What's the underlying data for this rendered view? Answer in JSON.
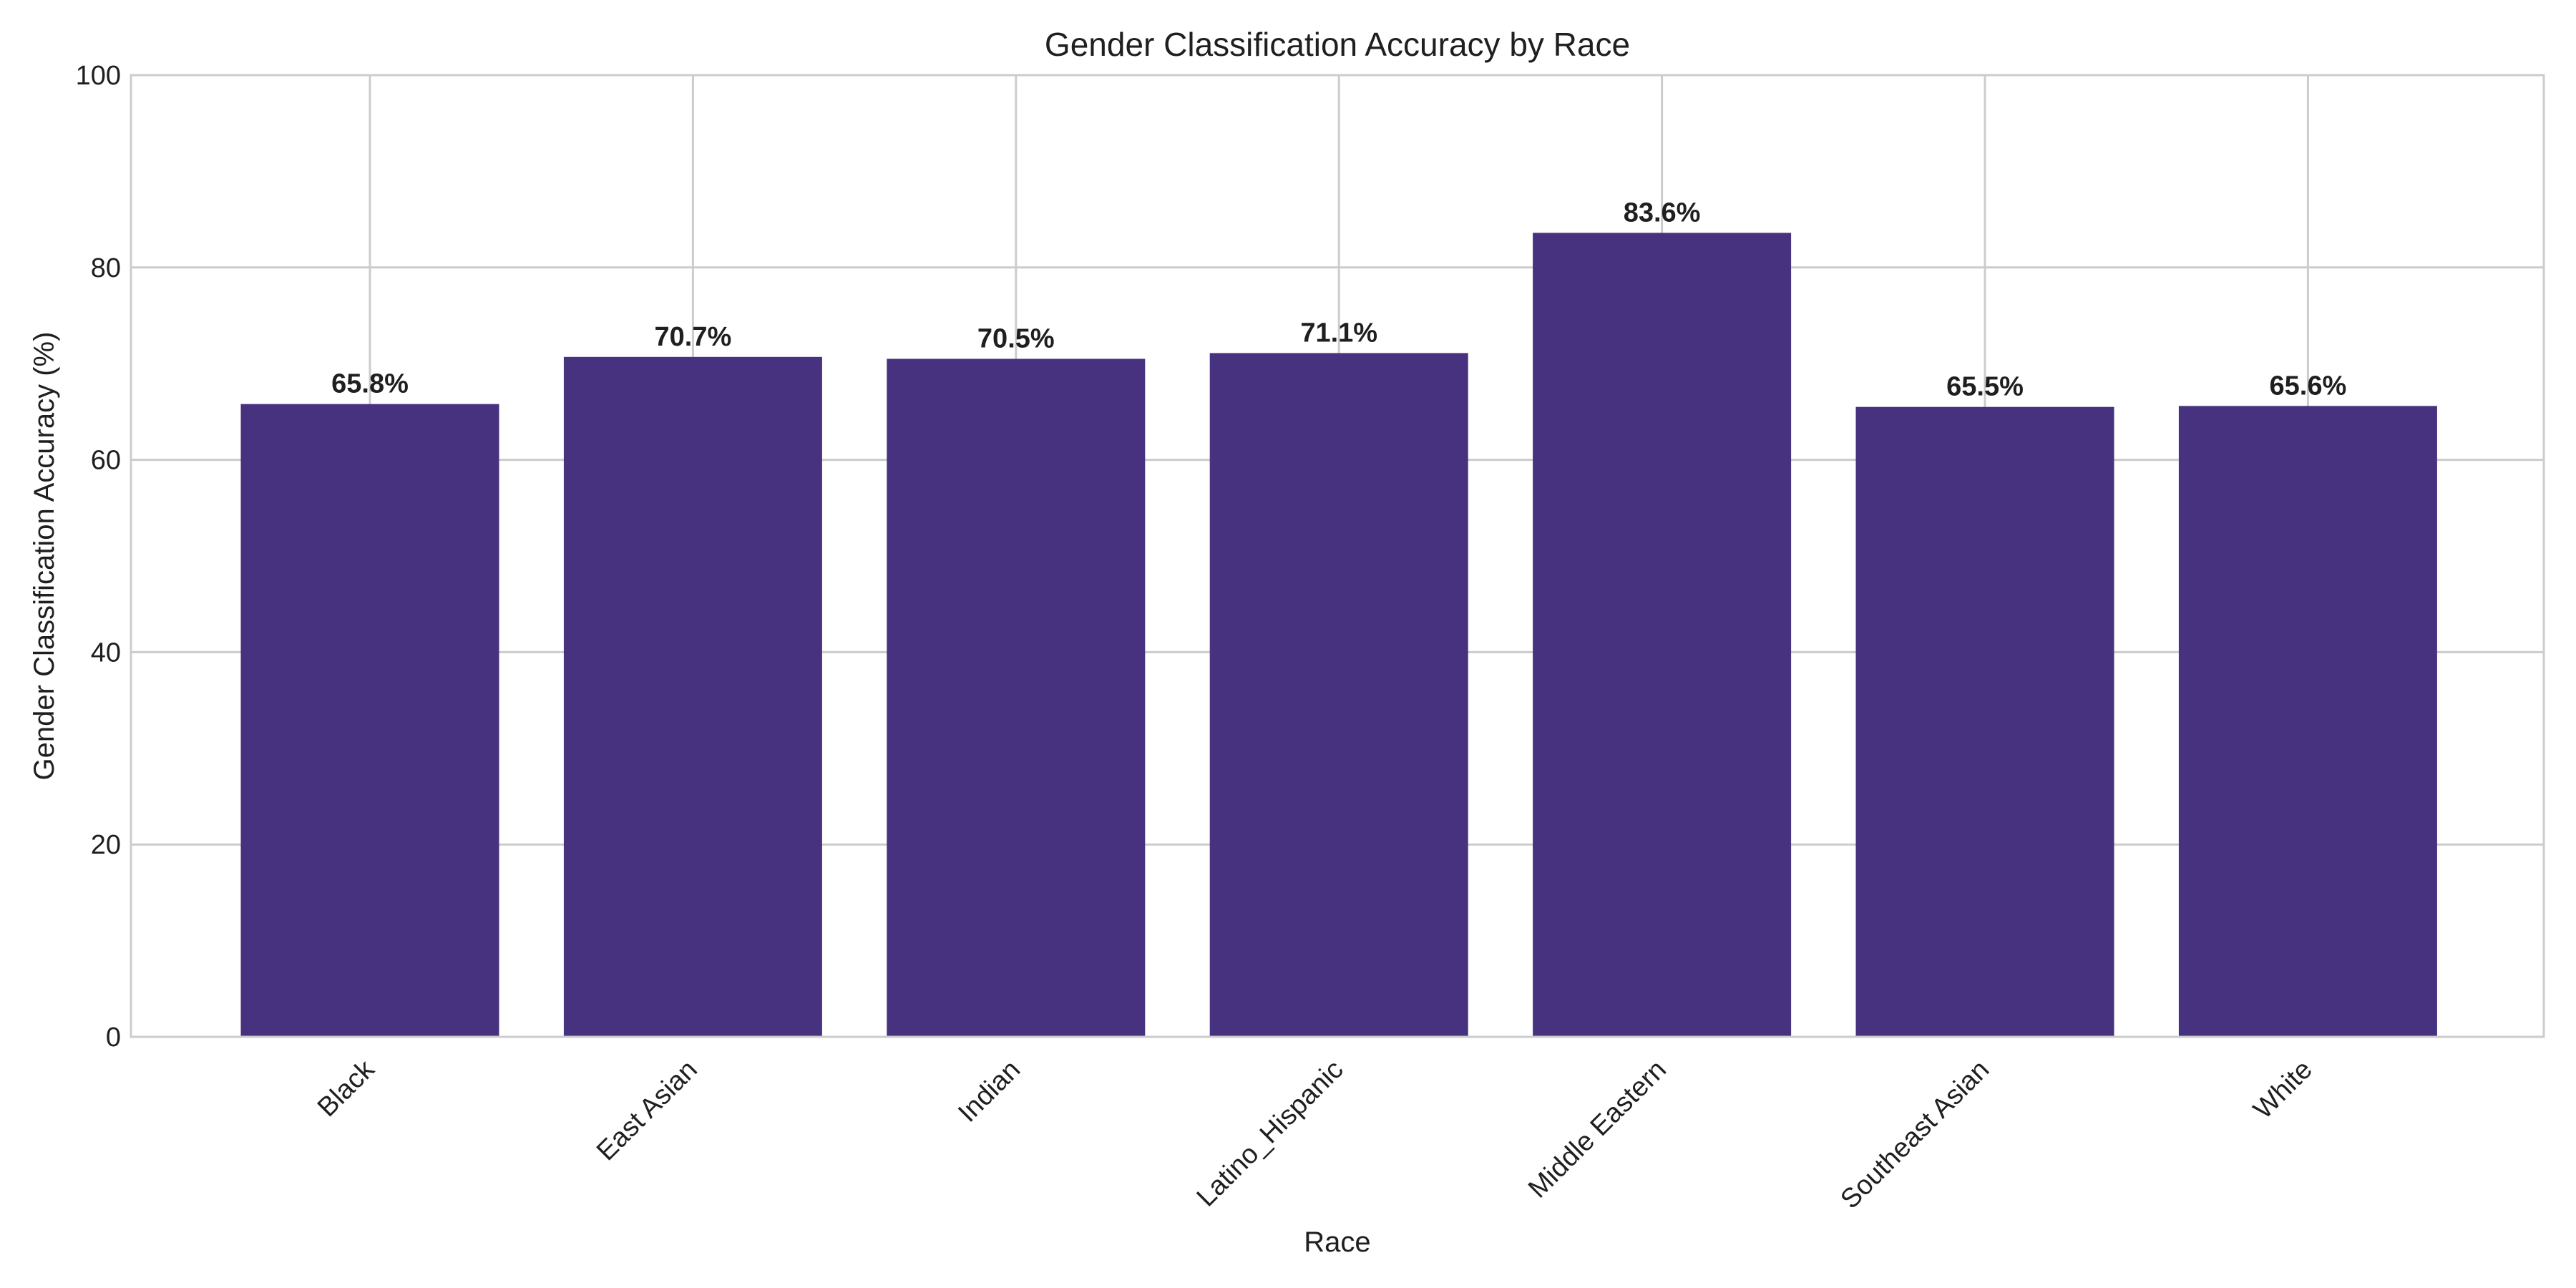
{
  "chart_data": {
    "type": "bar",
    "title": "Gender Classification Accuracy by Race",
    "xlabel": "Race",
    "ylabel": "Gender Classification Accuracy (%)",
    "categories": [
      "Black",
      "East Asian",
      "Indian",
      "Latino_Hispanic",
      "Middle Eastern",
      "Southeast Asian",
      "White"
    ],
    "values": [
      65.8,
      70.7,
      70.5,
      71.1,
      83.6,
      65.5,
      65.6
    ],
    "value_labels": [
      "65.8%",
      "70.7%",
      "70.5%",
      "71.1%",
      "83.6%",
      "65.5%",
      "65.6%"
    ],
    "ylim": [
      0,
      100
    ],
    "yticks": [
      0,
      20,
      40,
      60,
      80,
      100
    ],
    "ytick_labels": [
      "0",
      "20",
      "40",
      "60",
      "80",
      "100"
    ],
    "grid": true,
    "bar_color": "#46327e"
  }
}
